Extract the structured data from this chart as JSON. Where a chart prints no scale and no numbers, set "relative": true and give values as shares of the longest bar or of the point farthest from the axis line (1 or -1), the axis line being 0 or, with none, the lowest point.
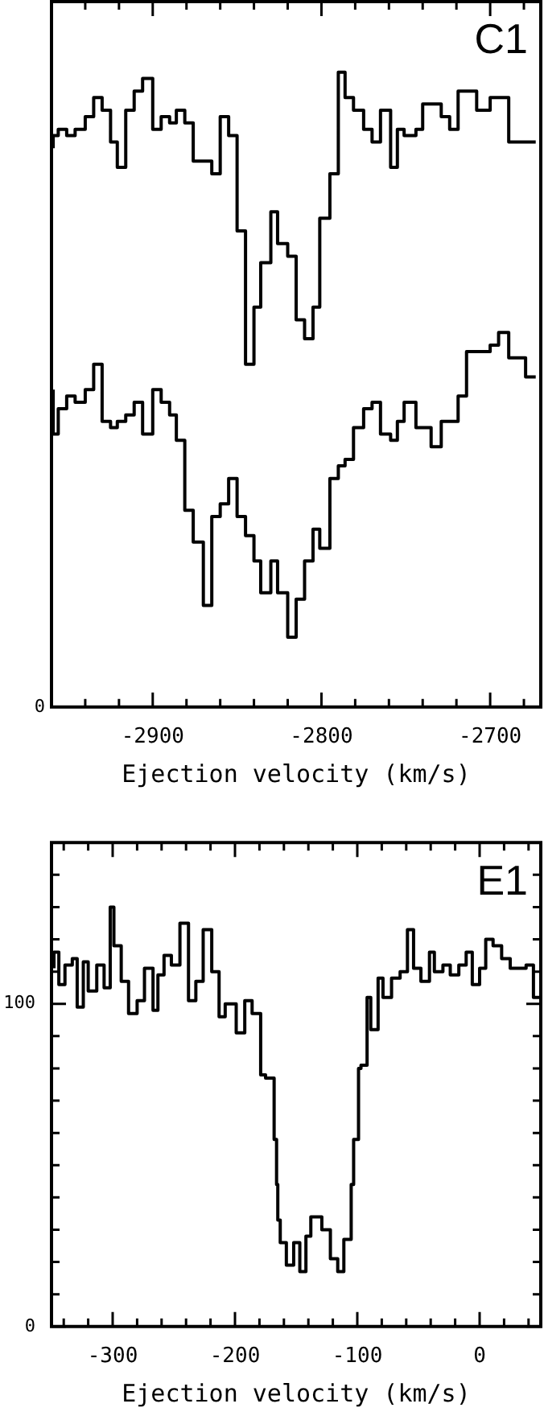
{
  "chart_data": [
    {
      "type": "step",
      "relative": true,
      "annotations": [
        "C1",
        "0"
      ],
      "xlabel": "Ejection velocity (km/s)",
      "xlim": [
        -2960,
        -2670
      ],
      "xticks": [
        {
          "value": -2940,
          "label": null
        },
        {
          "value": -2920,
          "label": null
        },
        -2900,
        {
          "value": -2880,
          "label": null
        },
        {
          "value": -2860,
          "label": null
        },
        {
          "value": -2840,
          "label": null
        },
        {
          "value": -2820,
          "label": null
        },
        -2800,
        {
          "value": -2780,
          "label": null
        },
        {
          "value": -2760,
          "label": null
        },
        {
          "value": -2740,
          "label": null
        },
        {
          "value": -2720,
          "label": null
        },
        -2700,
        {
          "value": -2680,
          "label": null
        }
      ],
      "x": [
        -2959,
        -2956,
        -2951,
        -2946,
        -2940,
        -2935,
        -2930,
        -2925,
        -2921,
        -2916,
        -2911,
        -2906,
        -2900,
        -2895,
        -2890,
        -2886,
        -2881,
        -2876,
        -2870,
        -2865,
        -2860,
        -2855,
        -2850,
        -2845,
        -2840,
        -2836,
        -2830,
        -2826,
        -2820,
        -2815,
        -2810,
        -2805,
        -2801,
        -2795,
        -2790,
        -2786,
        -2781,
        -2775,
        -2770,
        -2765,
        -2759,
        -2755,
        -2751,
        -2744,
        -2740,
        -2735,
        -2729,
        -2724,
        -2719,
        -2714,
        -2708,
        -2700,
        -2695,
        -2689,
        -2679,
        -2673
      ],
      "series": [
        {
          "color": "#000000",
          "values": [
            0.88,
            0.9,
            0.91,
            0.9,
            0.91,
            0.93,
            0.96,
            0.94,
            0.89,
            0.85,
            0.94,
            0.97,
            0.99,
            0.91,
            0.93,
            0.92,
            0.94,
            0.92,
            0.86,
            0.86,
            0.84,
            0.93,
            0.9,
            0.75,
            0.54,
            0.63,
            0.7,
            0.78,
            0.73,
            0.71,
            0.61,
            0.58,
            0.63,
            0.77,
            0.84,
            1.0,
            0.96,
            0.94,
            0.91,
            0.89,
            0.94,
            0.85,
            0.91,
            0.9,
            0.91,
            0.95,
            0.95,
            0.93,
            0.91,
            0.97,
            0.97,
            0.94,
            0.96,
            0.96,
            0.89,
            0.89
          ]
        },
        {
          "color": "#000000",
          "values": [
            0.5,
            0.43,
            0.47,
            0.49,
            0.48,
            0.5,
            0.54,
            0.45,
            0.44,
            0.45,
            0.46,
            0.48,
            0.43,
            0.5,
            0.48,
            0.46,
            0.42,
            0.31,
            0.26,
            0.16,
            0.3,
            0.32,
            0.36,
            0.3,
            0.27,
            0.23,
            0.18,
            0.23,
            0.18,
            0.11,
            0.17,
            0.23,
            0.28,
            0.25,
            0.36,
            0.38,
            0.39,
            0.44,
            0.47,
            0.48,
            0.43,
            0.42,
            0.45,
            0.48,
            0.44,
            0.44,
            0.41,
            0.45,
            0.45,
            0.49,
            0.56,
            0.56,
            0.57,
            0.59,
            0.55,
            0.52
          ]
        }
      ]
    },
    {
      "type": "step",
      "annotations": [
        "E1"
      ],
      "xlabel": "Ejection velocity (km/s)",
      "xlim": [
        -350,
        50
      ],
      "ylim": [
        0,
        150
      ],
      "xticks": [
        {
          "value": -340,
          "label": null
        },
        {
          "value": -320,
          "label": null
        },
        -300,
        {
          "value": -280,
          "label": null
        },
        {
          "value": -260,
          "label": null
        },
        {
          "value": -240,
          "label": null
        },
        {
          "value": -220,
          "label": null
        },
        -200,
        {
          "value": -180,
          "label": null
        },
        {
          "value": -160,
          "label": null
        },
        {
          "value": -140,
          "label": null
        },
        {
          "value": -120,
          "label": null
        },
        -100,
        {
          "value": -80,
          "label": null
        },
        {
          "value": -60,
          "label": null
        },
        {
          "value": -40,
          "label": null
        },
        {
          "value": -20,
          "label": null
        },
        0,
        {
          "value": 20,
          "label": null
        },
        {
          "value": 40,
          "label": null
        }
      ],
      "yticks": [
        0,
        {
          "value": 10,
          "label": null
        },
        {
          "value": 20,
          "label": null
        },
        {
          "value": 30,
          "label": null
        },
        {
          "value": 40,
          "label": null
        },
        {
          "value": 50,
          "label": null
        },
        {
          "value": 60,
          "label": null
        },
        {
          "value": 70,
          "label": null
        },
        {
          "value": 80,
          "label": null
        },
        {
          "value": 90,
          "label": null
        },
        100,
        {
          "value": 110,
          "label": null
        },
        {
          "value": 120,
          "label": null
        },
        {
          "value": 130,
          "label": null
        },
        {
          "value": 140,
          "label": null
        }
      ],
      "x": [
        -348,
        -344,
        -339,
        -333,
        -329,
        -324,
        -320,
        -313,
        -307,
        -302,
        -299,
        -293,
        -287,
        -280,
        -274,
        -267,
        -263,
        -258,
        -252,
        -245,
        -238,
        -232,
        -226,
        -219,
        -213,
        -208,
        -199,
        -192,
        -186,
        -179,
        -175,
        -168,
        -166,
        -165,
        -163,
        -158,
        -152,
        -147,
        -142,
        -138,
        -129,
        -122,
        -116,
        -111,
        -105,
        -103,
        -99,
        -97,
        -92,
        -89,
        -83,
        -79,
        -72,
        -65,
        -59,
        -54,
        -48,
        -41,
        -37,
        -30,
        -24,
        -17,
        -11,
        -6,
        0,
        5,
        11,
        18,
        25,
        31,
        38,
        44,
        49
      ],
      "color": "#000000",
      "values": [
        111,
        116,
        106,
        112,
        114,
        99,
        113,
        104,
        112,
        105,
        130,
        118,
        107,
        97,
        101,
        111,
        98,
        109,
        115,
        112,
        125,
        101,
        107,
        123,
        110,
        96,
        100,
        91,
        101,
        97,
        78,
        77,
        58,
        44,
        33,
        26,
        19,
        26,
        17,
        28,
        34,
        30,
        21,
        17,
        27,
        44,
        58,
        80,
        81,
        102,
        92,
        108,
        102,
        108,
        110,
        123,
        111,
        107,
        116,
        110,
        112,
        109,
        112,
        116,
        106,
        111,
        120,
        118,
        114,
        111,
        111,
        112,
        102
      ]
    }
  ]
}
